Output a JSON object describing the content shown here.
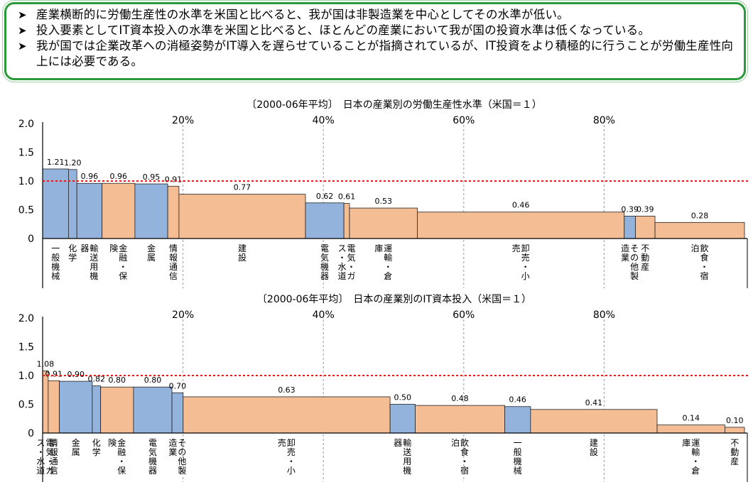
{
  "summary": {
    "bullet_icon": "arrow-bullet-icon",
    "bullets": [
      "産業横断的に労働生産性の水準を米国と比べると、我が国は非製造業を中心としてその水準が低い。",
      "投入要素としてIT資本投入の水準を米国と比べると、ほとんどの産業において我が国の投資水準は低くなっている。",
      "我が国では企業改革への消極姿勢がIT導入を遅らせていることが指摘されているが、IT投資をより積極的に行うことが労働生産性向上には必要である。"
    ],
    "border_color": "#2a9a3a"
  },
  "colors": {
    "manufacturing": "#93b3dc",
    "non_manufacturing": "#f4bd94",
    "reference_line": "#d82020",
    "percent_guide": "#999999"
  },
  "chart_data": [
    {
      "type": "bar",
      "title": "〔2000-06年平均〕　日本の産業別の労働生産性水準（米国＝１）",
      "ylim": [
        0,
        2.0
      ],
      "yticks": [
        "0",
        "0.5",
        "1.0",
        "1.5",
        "2.0"
      ],
      "ytick_values": [
        0,
        0.5,
        1.0,
        1.5,
        2.0
      ],
      "percent_ticks": [
        "20%",
        "40%",
        "60%",
        "80%"
      ],
      "percent_values": [
        20,
        40,
        60,
        80
      ],
      "reference_value": 1.0,
      "categories": [
        {
          "label": "一般機械",
          "value": 1.21,
          "share": 3.7,
          "group": "manufacturing",
          "value_label": "1.21"
        },
        {
          "label": "化学",
          "value": 1.2,
          "share": 1.2,
          "group": "manufacturing",
          "value_label": "1.20"
        },
        {
          "label": "輸送用機器",
          "value": 0.96,
          "share": 3.6,
          "group": "manufacturing",
          "value_label": "0.96"
        },
        {
          "label": "金融・保険",
          "value": 0.96,
          "share": 4.7,
          "group": "non_manufacturing",
          "value_label": "0.96"
        },
        {
          "label": "金属",
          "value": 0.95,
          "share": 4.7,
          "group": "manufacturing",
          "value_label": "0.95"
        },
        {
          "label": "情報通信",
          "value": 0.91,
          "share": 1.6,
          "group": "non_manufacturing",
          "value_label": "0.91"
        },
        {
          "label": "建設",
          "value": 0.77,
          "share": 18.1,
          "group": "non_manufacturing",
          "value_label": "0.77"
        },
        {
          "label": "電気機器",
          "value": 0.62,
          "share": 5.5,
          "group": "manufacturing",
          "value_label": "0.62"
        },
        {
          "label": "電気・ガス・水道",
          "value": 0.61,
          "share": 0.8,
          "group": "non_manufacturing",
          "value_label": "0.61"
        },
        {
          "label": "運輸・倉庫",
          "value": 0.53,
          "share": 9.7,
          "group": "non_manufacturing",
          "value_label": "0.53"
        },
        {
          "label": "卸売・小売",
          "value": 0.46,
          "share": 29.6,
          "group": "non_manufacturing",
          "value_label": "0.46"
        },
        {
          "label": "その他製造業",
          "value": 0.39,
          "share": 1.6,
          "group": "manufacturing",
          "value_label": "0.39"
        },
        {
          "label": "不動産",
          "value": 0.39,
          "share": 2.8,
          "group": "non_manufacturing",
          "value_label": "0.39"
        },
        {
          "label": "飲食・宿泊",
          "value": 0.28,
          "share": 12.8,
          "group": "non_manufacturing",
          "value_label": "0.28"
        }
      ]
    },
    {
      "type": "bar",
      "title": "〔2000-06年平均〕　日本の産業別のIT資本投入（米国＝１）",
      "ylim": [
        0,
        2.0
      ],
      "yticks": [
        "0",
        "0.5",
        "1.0",
        "1.5",
        "2.0"
      ],
      "ytick_values": [
        0,
        0.5,
        1.0,
        1.5,
        2.0
      ],
      "percent_ticks": [
        "20%",
        "40%",
        "60%",
        "80%"
      ],
      "percent_values": [
        20,
        40,
        60,
        80
      ],
      "reference_value": 1.0,
      "categories": [
        {
          "label": "電気・ガス・水道",
          "value": 1.08,
          "share": 0.8,
          "group": "non_manufacturing",
          "value_label": "1.08"
        },
        {
          "label": "情報通信",
          "value": 0.91,
          "share": 1.6,
          "group": "non_manufacturing",
          "value_label": "0.91"
        },
        {
          "label": "金属",
          "value": 0.9,
          "share": 4.7,
          "group": "manufacturing",
          "value_label": "0.90"
        },
        {
          "label": "化学",
          "value": 0.82,
          "share": 1.2,
          "group": "manufacturing",
          "value_label": "0.82"
        },
        {
          "label": "金融・保険",
          "value": 0.8,
          "share": 4.7,
          "group": "non_manufacturing",
          "value_label": "0.80"
        },
        {
          "label": "電気機器",
          "value": 0.8,
          "share": 5.5,
          "group": "manufacturing",
          "value_label": "0.80"
        },
        {
          "label": "その他製造業",
          "value": 0.7,
          "share": 1.6,
          "group": "manufacturing",
          "value_label": "0.70"
        },
        {
          "label": "卸売・小売",
          "value": 0.63,
          "share": 29.6,
          "group": "non_manufacturing",
          "value_label": "0.63"
        },
        {
          "label": "輸送用機器",
          "value": 0.5,
          "share": 3.6,
          "group": "manufacturing",
          "value_label": "0.50"
        },
        {
          "label": "飲食・宿泊",
          "value": 0.48,
          "share": 12.8,
          "group": "non_manufacturing",
          "value_label": "0.48"
        },
        {
          "label": "一般機械",
          "value": 0.46,
          "share": 3.7,
          "group": "manufacturing",
          "value_label": "0.46"
        },
        {
          "label": "建設",
          "value": 0.41,
          "share": 18.1,
          "group": "non_manufacturing",
          "value_label": "0.41"
        },
        {
          "label": "運輸・倉庫",
          "value": 0.14,
          "share": 9.7,
          "group": "non_manufacturing",
          "value_label": "0.14"
        },
        {
          "label": "不動産",
          "value": 0.1,
          "share": 2.8,
          "group": "non_manufacturing",
          "value_label": "0.10"
        }
      ]
    }
  ]
}
